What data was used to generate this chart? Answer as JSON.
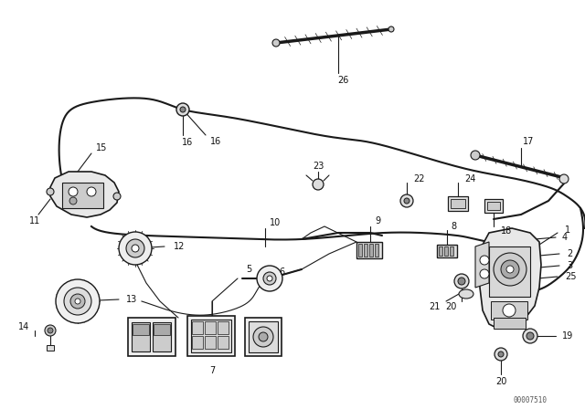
{
  "bg_color": "#ffffff",
  "line_color": "#1a1a1a",
  "label_color": "#111111",
  "watermark": "00007510",
  "fig_width": 6.4,
  "fig_height": 4.48,
  "dpi": 100
}
